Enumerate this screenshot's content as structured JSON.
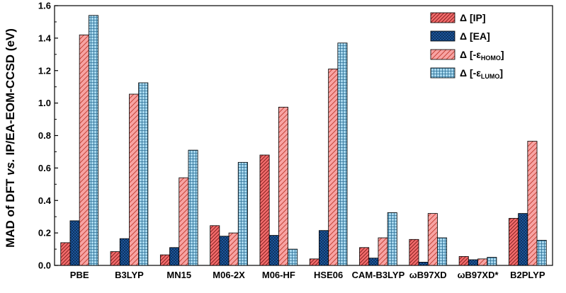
{
  "chart_data": {
    "type": "bar",
    "ylabel_parts": [
      "MAD of DFT ",
      "vs.",
      " IP/EA-EOM-CCSD (eV)"
    ],
    "ylim": [
      0,
      1.6
    ],
    "yticks": [
      "0.0",
      "0.2",
      "0.4",
      "0.6",
      "0.8",
      "1.0",
      "1.2",
      "1.4",
      "1.6"
    ],
    "categories": [
      "PBE",
      "B3LYP",
      "MN15",
      "M06-2X",
      "M06-HF",
      "HSE06",
      "CAM-B3LYP",
      "ωB97XD",
      "ωB97XD*",
      "B2PLYP"
    ],
    "legend_position": "top-right",
    "series": [
      {
        "name": "Δ [IP]",
        "legend_main": "Δ [IP]",
        "legend_sub": "",
        "legend_tail": "",
        "fill": "#f26b6b",
        "hatch": "diag-dense",
        "values": [
          0.14,
          0.085,
          0.065,
          0.245,
          0.68,
          0.04,
          0.11,
          0.16,
          0.055,
          0.29
        ]
      },
      {
        "name": "Δ [EA]",
        "legend_main": "Δ [EA]",
        "legend_sub": "",
        "legend_tail": "",
        "fill": "#1f5fa8",
        "hatch": "cross-dots",
        "values": [
          0.275,
          0.165,
          0.11,
          0.18,
          0.185,
          0.215,
          0.045,
          0.02,
          0.035,
          0.32
        ]
      },
      {
        "name": "Δ [-εHOMO]",
        "legend_main": "Δ [-ε",
        "legend_sub": "HOMO",
        "legend_tail": "]",
        "fill": "#f7a3a3",
        "hatch": "diag-sparse",
        "values": [
          1.42,
          1.055,
          0.54,
          0.2,
          0.975,
          1.21,
          0.17,
          0.32,
          0.04,
          0.765
        ]
      },
      {
        "name": "Δ [-εLUMO]",
        "legend_main": "Δ [-ε",
        "legend_sub": "LUMO",
        "legend_tail": "]",
        "fill": "#a8d8ee",
        "hatch": "grid",
        "values": [
          1.54,
          1.125,
          0.71,
          0.635,
          0.1,
          1.37,
          0.325,
          0.17,
          0.05,
          0.155
        ]
      }
    ]
  }
}
